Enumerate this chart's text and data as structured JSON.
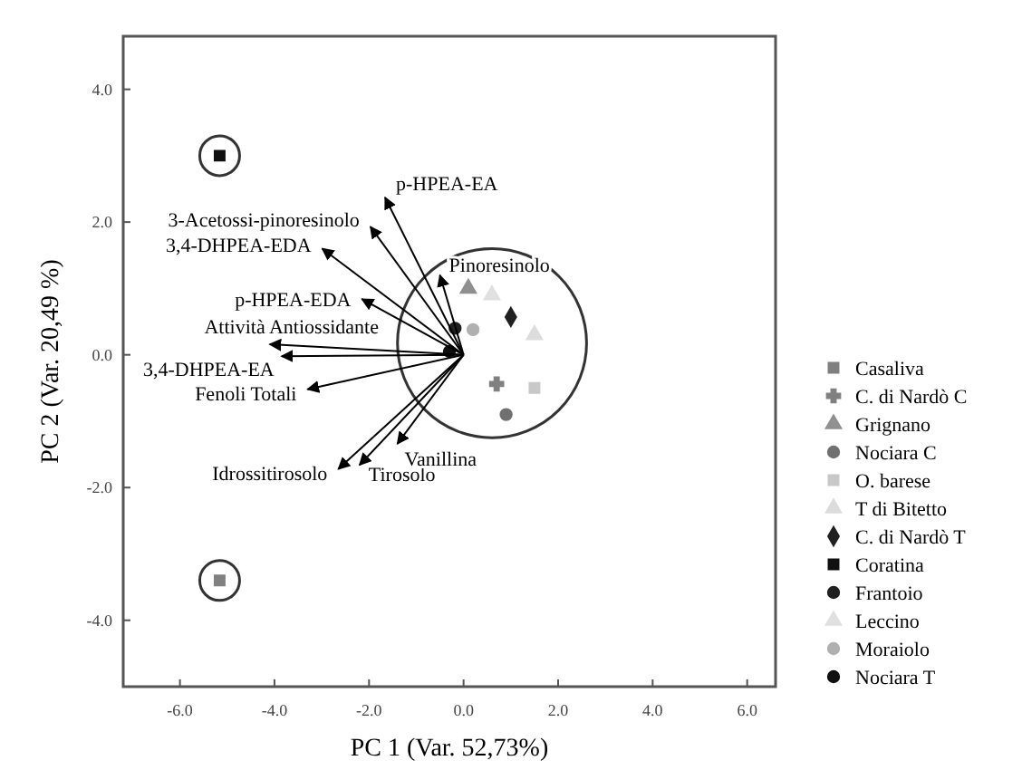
{
  "chart_data": {
    "type": "scatter",
    "xlabel": "PC 1 (Var. 52,73%)",
    "ylabel": "PC 2 (Var. 20,49 %)",
    "xlim": [
      -7.2,
      6.6
    ],
    "ylim": [
      -5.0,
      4.8
    ],
    "xticks": [
      {
        "value": -6,
        "label": "-6.0"
      },
      {
        "value": -4,
        "label": "-4.0"
      },
      {
        "value": -2,
        "label": "-2.0"
      },
      {
        "value": 0,
        "label": "0.0"
      },
      {
        "value": 2,
        "label": "2.0"
      },
      {
        "value": 4,
        "label": "4.0"
      },
      {
        "value": 6,
        "label": "6.0"
      }
    ],
    "yticks": [
      {
        "value": -4,
        "label": "-4.0"
      },
      {
        "value": -2,
        "label": "-2.0"
      },
      {
        "value": 0,
        "label": "0.0"
      },
      {
        "value": 2,
        "label": "2.0"
      },
      {
        "value": 4,
        "label": "4.0"
      }
    ],
    "legend": "right",
    "grid": false,
    "series": [
      {
        "name": "Casaliva",
        "color": "#808080",
        "marker": "square",
        "x": [
          -5.16
        ],
        "values": [
          -3.4
        ]
      },
      {
        "name": "C. di Nardò C",
        "color": "#808080",
        "marker": "cross",
        "x": [
          0.7
        ],
        "values": [
          -0.44
        ]
      },
      {
        "name": "Grignano",
        "color": "#909090",
        "marker": "triangle",
        "x": [
          0.1
        ],
        "values": [
          1.0
        ]
      },
      {
        "name": "Nociara C",
        "color": "#707070",
        "marker": "circle",
        "x": [
          0.9
        ],
        "values": [
          -0.9
        ]
      },
      {
        "name": "O. barese",
        "color": "#c8c8c8",
        "marker": "square",
        "x": [
          1.5
        ],
        "values": [
          -0.5
        ]
      },
      {
        "name": "T di Bitetto",
        "color": "#dcdcdc",
        "marker": "triangle",
        "x": [
          1.5
        ],
        "values": [
          0.3
        ]
      },
      {
        "name": "C. di Nardò T",
        "color": "#202020",
        "marker": "diamond",
        "x": [
          1.0
        ],
        "values": [
          0.57
        ]
      },
      {
        "name": "Coratina",
        "color": "#101010",
        "marker": "square",
        "x": [
          -5.16
        ],
        "values": [
          3.0
        ]
      },
      {
        "name": "Frantoio",
        "color": "#202020",
        "marker": "circle",
        "x": [
          -0.18
        ],
        "values": [
          0.4
        ]
      },
      {
        "name": "Leccino",
        "color": "#e0e0e0",
        "marker": "triangle",
        "x": [
          0.6
        ],
        "values": [
          0.9
        ]
      },
      {
        "name": "Moraiolo",
        "color": "#b0b0b0",
        "marker": "circle",
        "x": [
          0.2
        ],
        "values": [
          0.38
        ]
      },
      {
        "name": "Nociara T",
        "color": "#101010",
        "marker": "circle",
        "x": [
          -0.3
        ],
        "values": [
          0.05
        ]
      },
      {
        "type": "line",
        "name": "p-HPEA-EA",
        "color": "#000000",
        "x": [
          0,
          -1.66
        ],
        "values": [
          0,
          2.37
        ]
      },
      {
        "type": "line",
        "name": "3-Acetossi-pinoresinolo",
        "color": "#000000",
        "x": [
          0,
          -1.97
        ],
        "values": [
          0,
          1.93
        ]
      },
      {
        "type": "line",
        "name": "3,4-DHPEA-EDA",
        "color": "#000000",
        "x": [
          0,
          -2.99
        ],
        "values": [
          0,
          1.6
        ]
      },
      {
        "type": "line",
        "name": "p-HPEA-EDA",
        "color": "#000000",
        "x": [
          0,
          -2.15
        ],
        "values": [
          0,
          0.84
        ]
      },
      {
        "type": "line",
        "name": "Pinoresinolo",
        "color": "#000000",
        "x": [
          0,
          -0.5
        ],
        "values": [
          0,
          1.2
        ]
      },
      {
        "type": "line",
        "name": "Attività Antiossidante",
        "color": "#000000",
        "x": [
          0,
          -4.1
        ],
        "values": [
          0,
          0.16
        ]
      },
      {
        "type": "line",
        "name": "3,4-DHPEA-EA",
        "color": "#000000",
        "x": [
          0,
          -3.85
        ],
        "values": [
          0,
          -0.02
        ]
      },
      {
        "type": "line",
        "name": "Fenoli Totali",
        "color": "#000000",
        "x": [
          0,
          -3.3
        ],
        "values": [
          0,
          -0.52
        ]
      },
      {
        "type": "line",
        "name": "Idrossitirosolo",
        "color": "#000000",
        "x": [
          0,
          -2.65
        ],
        "values": [
          0,
          -1.72
        ]
      },
      {
        "type": "line",
        "name": "Tirosolo",
        "color": "#000000",
        "x": [
          0,
          -2.2
        ],
        "values": [
          0,
          -1.66
        ]
      },
      {
        "type": "line",
        "name": "Vanillina",
        "color": "#000000",
        "x": [
          0,
          -1.4
        ],
        "values": [
          0,
          -1.34
        ]
      }
    ]
  }
}
